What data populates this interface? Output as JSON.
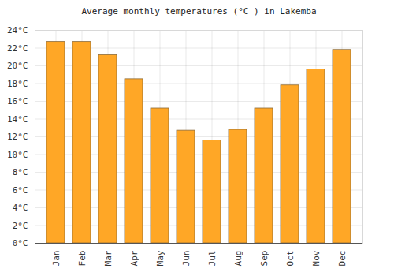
{
  "chart_data": {
    "type": "bar",
    "title": "Average monthly temperatures (°C ) in Lakemba",
    "categories": [
      "Jan",
      "Feb",
      "Mar",
      "Apr",
      "May",
      "Jun",
      "Jul",
      "Aug",
      "Sep",
      "Oct",
      "Nov",
      "Dec"
    ],
    "values": [
      22.7,
      22.7,
      21.2,
      18.5,
      15.2,
      12.7,
      11.6,
      12.8,
      15.2,
      17.8,
      19.6,
      21.8
    ],
    "color": "#ffa726",
    "ylim": [
      0,
      24
    ],
    "yticks": [
      {
        "value": 0,
        "label": "0°C"
      },
      {
        "value": 2,
        "label": "2°C"
      },
      {
        "value": 4,
        "label": "4°C"
      },
      {
        "value": 6,
        "label": "6°C"
      },
      {
        "value": 8,
        "label": "8°C"
      },
      {
        "value": 10,
        "label": "10°C"
      },
      {
        "value": 12,
        "label": "12°C"
      },
      {
        "value": 14,
        "label": "14°C"
      },
      {
        "value": 16,
        "label": "16°C"
      },
      {
        "value": 18,
        "label": "18°C"
      },
      {
        "value": 20,
        "label": "20°C"
      },
      {
        "value": 22,
        "label": "22°C"
      },
      {
        "value": 24,
        "label": "24°C"
      }
    ],
    "grid": true
  }
}
